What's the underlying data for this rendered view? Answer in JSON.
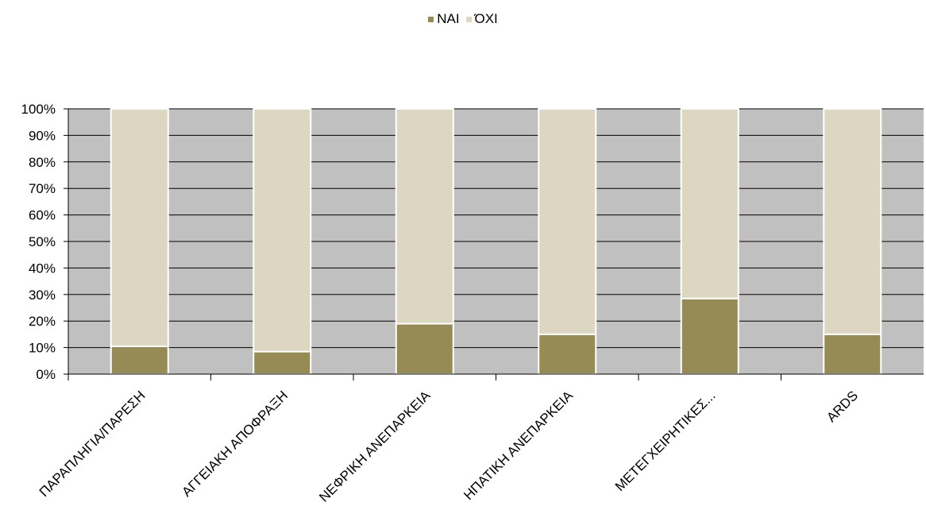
{
  "chart_data": {
    "type": "bar",
    "stacked": "percent",
    "categories": [
      "ΠΑΡΑΠΛΗΓΙΑ/ΠΑΡΕΣΗ",
      "ΑΓΓΕΙΑΚΗ ΑΠΟΦΡΑΞΗ",
      "ΝΕΦΡΙΚΗ ΑΝΕΠΑΡΚΕΙΑ",
      "ΗΠΑΤΙΚΗ ΑΝΕΠΑΡΚΕΙΑ",
      "ΜΕΤΕΓΧΕΙΡΗΤΙΚΕΣ...",
      "ARDS"
    ],
    "series": [
      {
        "name": "ΝΑΙ",
        "color": "#968a55",
        "values": [
          10.5,
          8.5,
          19,
          15,
          28.5,
          15
        ]
      },
      {
        "name": "ΌΧΙ",
        "color": "#ddd7c1",
        "values": [
          89.5,
          91.5,
          81,
          85,
          71.5,
          85
        ]
      }
    ],
    "yticks": [
      "0%",
      "10%",
      "20%",
      "30%",
      "40%",
      "50%",
      "60%",
      "70%",
      "80%",
      "90%",
      "100%"
    ],
    "ylim": [
      0,
      100
    ],
    "grid": true,
    "plot_background": "#c0c0c0",
    "legend_position": "top-center",
    "title": "",
    "xlabel": "",
    "ylabel": ""
  }
}
